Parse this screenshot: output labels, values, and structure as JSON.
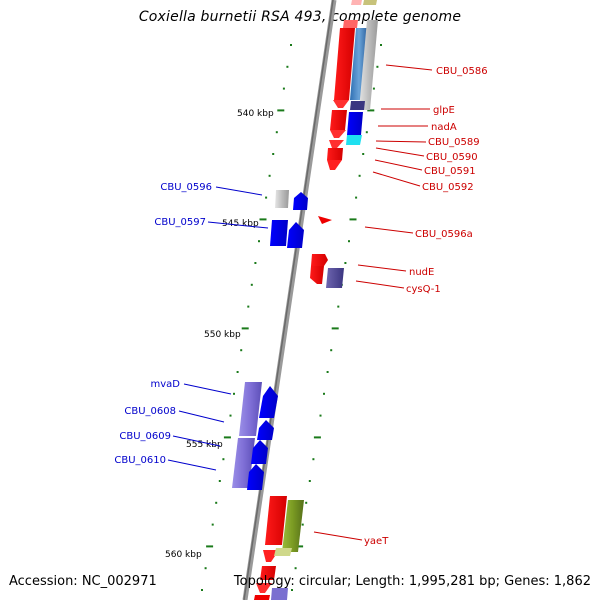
{
  "title": "Coxiella burnetii RSA 493, complete genome",
  "footer": {
    "accession": "Accession: NC_002971",
    "summary": "Topology: circular; Length: 1,995,281 bp; Genes: 1,862"
  },
  "colors": {
    "forward_label": "#0000cc",
    "reverse_label": "#cc0000",
    "forward_gene": "#0000ee",
    "reverse_gene": "#ee0000",
    "backbone": "#808080",
    "ticks": "#1a7a1a"
  },
  "scale_labels": [
    "540 kbp",
    "545 kbp",
    "550 kbp",
    "555 kbp",
    "560 kbp"
  ],
  "gene_labels_left": [
    "CBU_0596",
    "CBU_0597",
    "mvaD",
    "CBU_0608",
    "CBU_0609",
    "CBU_0610"
  ],
  "gene_labels_right": [
    "CBU_0586",
    "glpE",
    "nadA",
    "CBU_0589",
    "CBU_0590",
    "CBU_0591",
    "CBU_0592",
    "CBU_0596a",
    "nudE",
    "cysQ-1",
    "yaeT"
  ]
}
